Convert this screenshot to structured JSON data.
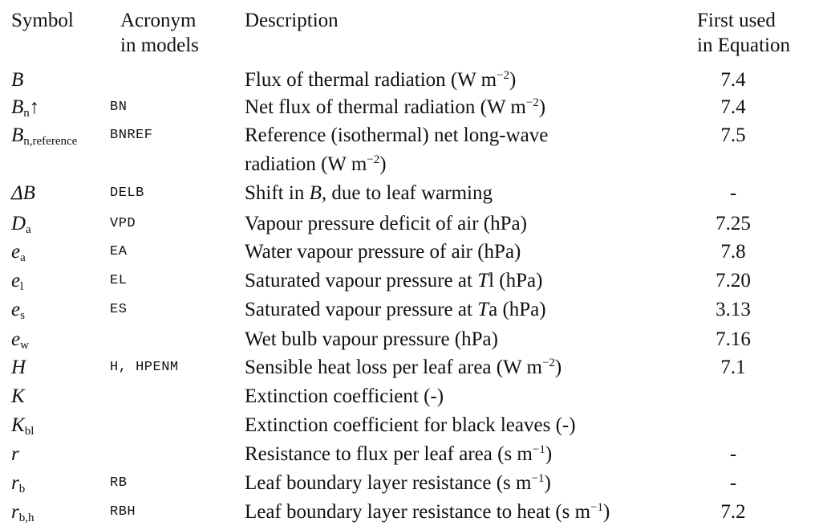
{
  "header": {
    "symbol": "Symbol",
    "acronym_line1": "Acronym",
    "acronym_line2": "in models",
    "description": "Description",
    "first_used_line1": "First used",
    "first_used_line2": "in Equation"
  },
  "rows": [
    {
      "symbol": "B",
      "sub": "",
      "acronym": "",
      "description": "Flux of thermal radiation (W m",
      "unit_sup": "−2",
      "desc_tail": ")",
      "eq": "7.4"
    },
    {
      "symbol": "B",
      "sub": "n",
      "arrow": "↑",
      "acronym": "BN",
      "description": "Net flux of thermal radiation (W m",
      "unit_sup": "−2",
      "desc_tail": ")",
      "eq": "7.4"
    },
    {
      "symbol": "B",
      "sub": "n,reference",
      "acronym": "BNREF",
      "description": "Reference (isothermal) net long-wave",
      "description_line2": "radiation (W m",
      "unit_sup": "−2",
      "desc_tail": ")",
      "eq": "7.5"
    },
    {
      "symbol": "ΔB",
      "sub": "",
      "acronym": "DELB",
      "description": "Shift in ",
      "desc_italic": "B",
      "desc_tail": ", due to leaf warming",
      "eq": "-"
    },
    {
      "symbol": "D",
      "sub": "a",
      "acronym": "VPD",
      "description": "Vapour pressure deficit of air (hPa)",
      "eq": "7.25"
    },
    {
      "symbol": "e",
      "sub": "a",
      "acronym": "EA",
      "description": "Water vapour pressure of air (hPa)",
      "eq": "7.8"
    },
    {
      "symbol": "e",
      "sub": "l",
      "acronym": "EL",
      "description": "Saturated vapour pressure at ",
      "desc_italic": "T",
      "desc_tail": "l (hPa)",
      "eq": "7.20"
    },
    {
      "symbol": "e",
      "sub": "s",
      "acronym": "ES",
      "description": "Saturated vapour pressure at ",
      "desc_italic": "T",
      "desc_tail": "a (hPa)",
      "eq": "3.13"
    },
    {
      "symbol": "e",
      "sub": "w",
      "acronym": "",
      "description": "Wet bulb vapour pressure (hPa)",
      "eq": "7.16"
    },
    {
      "symbol": "H",
      "sub": "",
      "acronym": "H, HPENM",
      "description": "Sensible heat loss per leaf area (W m",
      "unit_sup": "−2",
      "desc_tail": ")",
      "eq": "7.1"
    },
    {
      "symbol": "K",
      "sub": "",
      "acronym": "",
      "description": "Extinction coefficient (-)",
      "eq": ""
    },
    {
      "symbol": "K",
      "sub": "bl",
      "acronym": "",
      "description": "Extinction coefficient for black leaves (-)",
      "eq": ""
    },
    {
      "symbol": "r",
      "sub": "",
      "acronym": "",
      "description": "Resistance to flux per leaf area (s m",
      "unit_sup": "−1",
      "desc_tail": ")",
      "eq": "-"
    },
    {
      "symbol": "r",
      "sub": "b",
      "acronym": "RB",
      "description": "Leaf boundary layer resistance (s m",
      "unit_sup": "−1",
      "desc_tail": ")",
      "eq": "-"
    },
    {
      "symbol": "r",
      "sub": "b,h",
      "acronym": "RBH",
      "description": "Leaf boundary layer resistance to heat (s m",
      "unit_sup": "−1",
      "desc_tail": ")",
      "eq": "7.2"
    }
  ]
}
